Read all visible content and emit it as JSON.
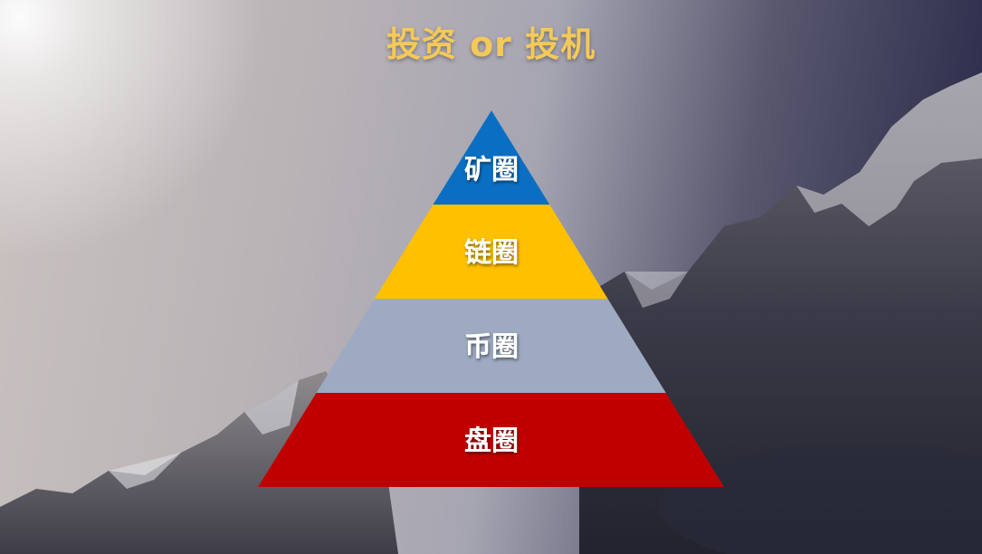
{
  "slide": {
    "title": "投资 or 投机"
  },
  "pyramid": {
    "tiers": [
      {
        "label": "矿圈",
        "color": "#0a6fc2"
      },
      {
        "label": "链圈",
        "color": "#ffc000"
      },
      {
        "label": "币圈",
        "color": "#9eaac1"
      },
      {
        "label": "盘圈",
        "color": "#c00000"
      }
    ]
  }
}
